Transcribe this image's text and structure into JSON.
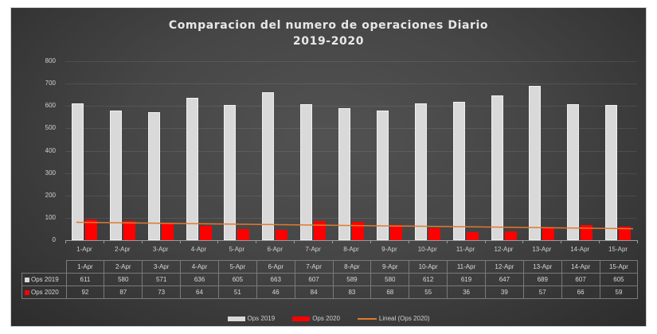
{
  "chart_data": {
    "type": "bar",
    "title": "Comparacion del numero de operaciones Diario",
    "subtitle": "2019-2020",
    "xlabel": "",
    "ylabel": "",
    "ylim": [
      0,
      800
    ],
    "yticks": [
      0,
      100,
      200,
      300,
      400,
      500,
      600,
      700,
      800
    ],
    "grid": true,
    "legend_position": "bottom",
    "categories": [
      "1-Apr",
      "2-Apr",
      "3-Apr",
      "4-Apr",
      "5-Apr",
      "6-Apr",
      "7-Apr",
      "8-Apr",
      "9-Apr",
      "10-Apr",
      "11-Apr",
      "12-Apr",
      "13-Apr",
      "14-Apr",
      "15-Apr"
    ],
    "series": [
      {
        "name": "Ops 2019",
        "color": "#d9d9d9",
        "values": [
          611,
          580,
          571,
          636,
          605,
          663,
          607,
          589,
          580,
          612,
          619,
          647,
          689,
          607,
          605
        ]
      },
      {
        "name": "Ops 2020",
        "color": "#ff0000",
        "values": [
          92,
          87,
          73,
          64,
          51,
          46,
          84,
          83,
          68,
          55,
          36,
          39,
          57,
          66,
          59
        ]
      }
    ],
    "trendline": {
      "name": "Lineal (Ops 2020)",
      "type": "linear",
      "of_series": "Ops 2020",
      "color": "#e07a30",
      "start": 80,
      "end": 51
    },
    "data_table": true
  },
  "legend": {
    "items": [
      {
        "label": "Ops 2019",
        "color": "#d9d9d9"
      },
      {
        "label": "Ops 2020",
        "color": "#ff0000"
      },
      {
        "label": "Lineal (Ops 2020)",
        "color": "#e07a30"
      }
    ]
  },
  "table": {
    "row_labels": [
      "Ops 2019",
      "Ops 2020"
    ]
  }
}
